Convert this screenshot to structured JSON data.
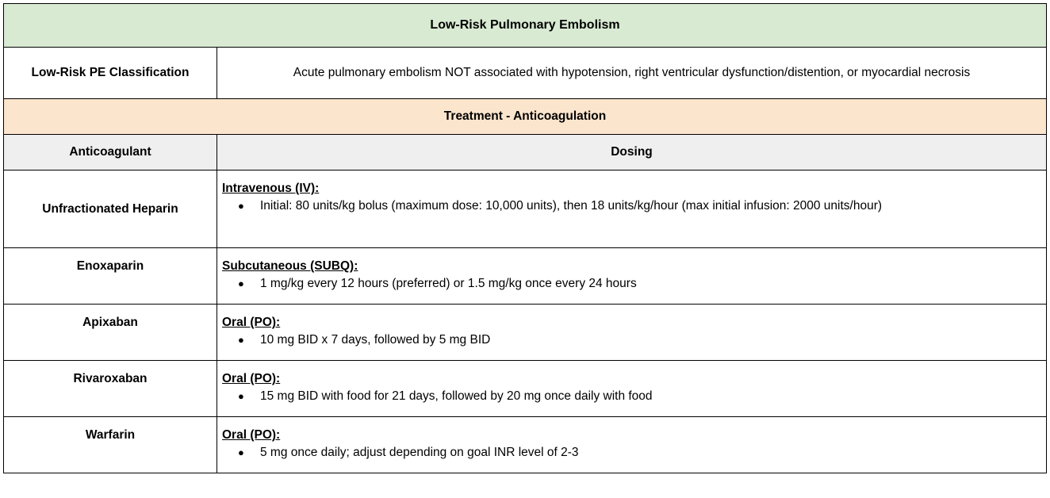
{
  "title": "Low-Risk Pulmonary Embolism",
  "classification": {
    "label": "Low-Risk PE Classification",
    "text": "Acute pulmonary embolism NOT associated with hypotension, right ventricular dysfunction/distention, or myocardial necrosis"
  },
  "section_title": "Treatment - Anticoagulation",
  "columns": {
    "anticoagulant": "Anticoagulant",
    "dosing": "Dosing"
  },
  "rows": [
    {
      "drug": "Unfractionated Heparin",
      "route": "Intravenous (IV):",
      "detail": "Initial: 80 units/kg bolus (maximum dose: 10,000 units), then 18 units/kg/hour (max initial infusion: 2000 units/hour)"
    },
    {
      "drug": "Enoxaparin",
      "route": "Subcutaneous (SUBQ):",
      "detail": "1 mg/kg every 12 hours (preferred) or 1.5 mg/kg once every 24 hours"
    },
    {
      "drug": "Apixaban",
      "route": "Oral (PO):",
      "detail": "10 mg BID x 7 days, followed by 5 mg BID"
    },
    {
      "drug": "Rivaroxaban",
      "route": "Oral (PO):",
      "detail": "15 mg BID with food for 21 days, followed by 20 mg once daily with food"
    },
    {
      "drug": "Warfarin",
      "route": "Oral (PO):",
      "detail": "5 mg once daily; adjust depending on goal INR level of 2-3"
    }
  ],
  "colors": {
    "title_bg": "#d9ead3",
    "section_bg": "#fce5cd",
    "header_bg": "#efefef",
    "border": "#000000"
  }
}
